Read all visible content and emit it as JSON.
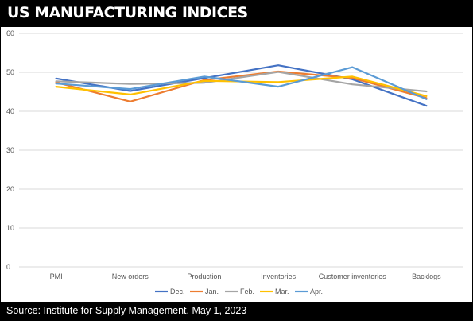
{
  "header": {
    "title": "US MANUFACTURING INDICES"
  },
  "footer": {
    "source": "Source: Institute for Supply Management, May 1, 2023"
  },
  "chart_data": {
    "type": "line",
    "categories": [
      "PMI",
      "New orders",
      "Production",
      "Inventories",
      "Customer inventories",
      "Backlogs"
    ],
    "ylim": [
      0,
      60
    ],
    "yticks": [
      0,
      10,
      20,
      30,
      40,
      50,
      60
    ],
    "grid": true,
    "legend_position": "bottom",
    "series": [
      {
        "name": "Dec.",
        "color": "#4472C4",
        "values": [
          48.4,
          45.2,
          48.5,
          51.8,
          48.2,
          41.4
        ]
      },
      {
        "name": "Jan.",
        "color": "#ED7D31",
        "values": [
          47.4,
          42.5,
          48.0,
          50.2,
          48.5,
          43.4
        ]
      },
      {
        "name": "Feb.",
        "color": "#A5A5A5",
        "values": [
          47.7,
          47.0,
          47.3,
          50.1,
          46.9,
          45.1
        ]
      },
      {
        "name": "Mar.",
        "color": "#FFC000",
        "values": [
          46.3,
          44.3,
          47.8,
          47.5,
          48.9,
          43.9
        ]
      },
      {
        "name": "Apr.",
        "color": "#5B9BD5",
        "values": [
          47.1,
          45.7,
          48.9,
          46.3,
          51.3,
          43.1
        ]
      }
    ]
  }
}
